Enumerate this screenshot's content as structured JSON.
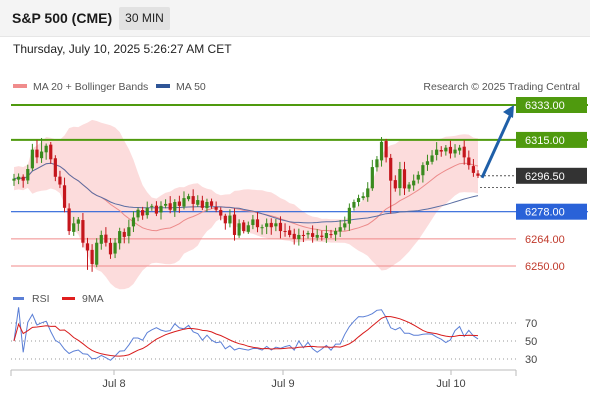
{
  "header": {
    "symbol": "S&P 500 (CME)",
    "timeframe": "30 MIN",
    "datetime": "Thursday, July 10, 2025 5:26:27 AM CET"
  },
  "colors": {
    "resistance": "#4f9a0e",
    "support": "#2a62d8",
    "support_light": "#f08a8a",
    "last_price": "#333333",
    "candle_up": "#3a8a1e",
    "candle_down": "#c4161c",
    "bollinger_fill": "#fbd6d6",
    "ma20": "#ec8a8a",
    "ma50": "#5a6ea3",
    "arrow": "#1f5fa8",
    "rsi": "#5b7fd6",
    "rsi_ma": "#d81c1c"
  },
  "chart_data": {
    "type": "candlestick",
    "legend": [
      {
        "name": "MA 20 + Bollinger Bands",
        "color": "#f08c8c"
      },
      {
        "name": "MA 50",
        "color": "#2f5597"
      }
    ],
    "credit": "Research © 2025 Trading Central",
    "x_ticks": [
      "Jul 8",
      "Jul 9",
      "Jul 10"
    ],
    "ylim": [
      6238,
      6340
    ],
    "levels": [
      {
        "value": 6333.0,
        "label": "6333.00",
        "kind": "resistance"
      },
      {
        "value": 6315.0,
        "label": "6315.00",
        "kind": "resistance"
      },
      {
        "value": 6296.5,
        "label": "6296.50",
        "kind": "last"
      },
      {
        "value": 6278.0,
        "label": "6278.00",
        "kind": "support"
      },
      {
        "value": 6264.0,
        "label": "6264.00",
        "kind": "support_light"
      },
      {
        "value": 6250.0,
        "label": "6250.00",
        "kind": "support_light"
      }
    ],
    "target_arrow": {
      "from": 6295.5,
      "to": 6333.0
    },
    "closes": [
      6295,
      6296,
      6294,
      6300,
      6310,
      6306,
      6309,
      6312,
      6305,
      6296,
      6292,
      6280,
      6268,
      6272,
      6274,
      6262,
      6258,
      6251,
      6262,
      6266,
      6262,
      6256,
      6262,
      6268,
      6265,
      6270,
      6275,
      6279,
      6276,
      6280,
      6281,
      6277,
      6281,
      6282,
      6279,
      6283,
      6281,
      6285,
      6286,
      6282,
      6284,
      6280,
      6283,
      6281,
      6279,
      6276,
      6272,
      6276,
      6266,
      6272,
      6268,
      6271,
      6274,
      6270,
      6270,
      6272,
      6270,
      6272,
      6268,
      6268,
      6266,
      6264,
      6266,
      6266,
      6267,
      6265,
      6266,
      6265,
      6267,
      6266,
      6268,
      6270,
      6272,
      6280,
      6283,
      6285,
      6286,
      6290,
      6301,
      6305,
      6314,
      6306,
      6294,
      6290,
      6300,
      6290,
      6292,
      6294,
      6297,
      6302,
      6304,
      6307,
      6310,
      6309,
      6311,
      6308,
      6310,
      6311,
      6306,
      6302,
      6298,
      6296.5
    ],
    "rsi": {
      "ticks": [
        70,
        50,
        30
      ],
      "legend": [
        {
          "name": "RSI",
          "color": "#5b7fd6"
        },
        {
          "name": "9MA",
          "color": "#e01e1e"
        }
      ]
    }
  }
}
